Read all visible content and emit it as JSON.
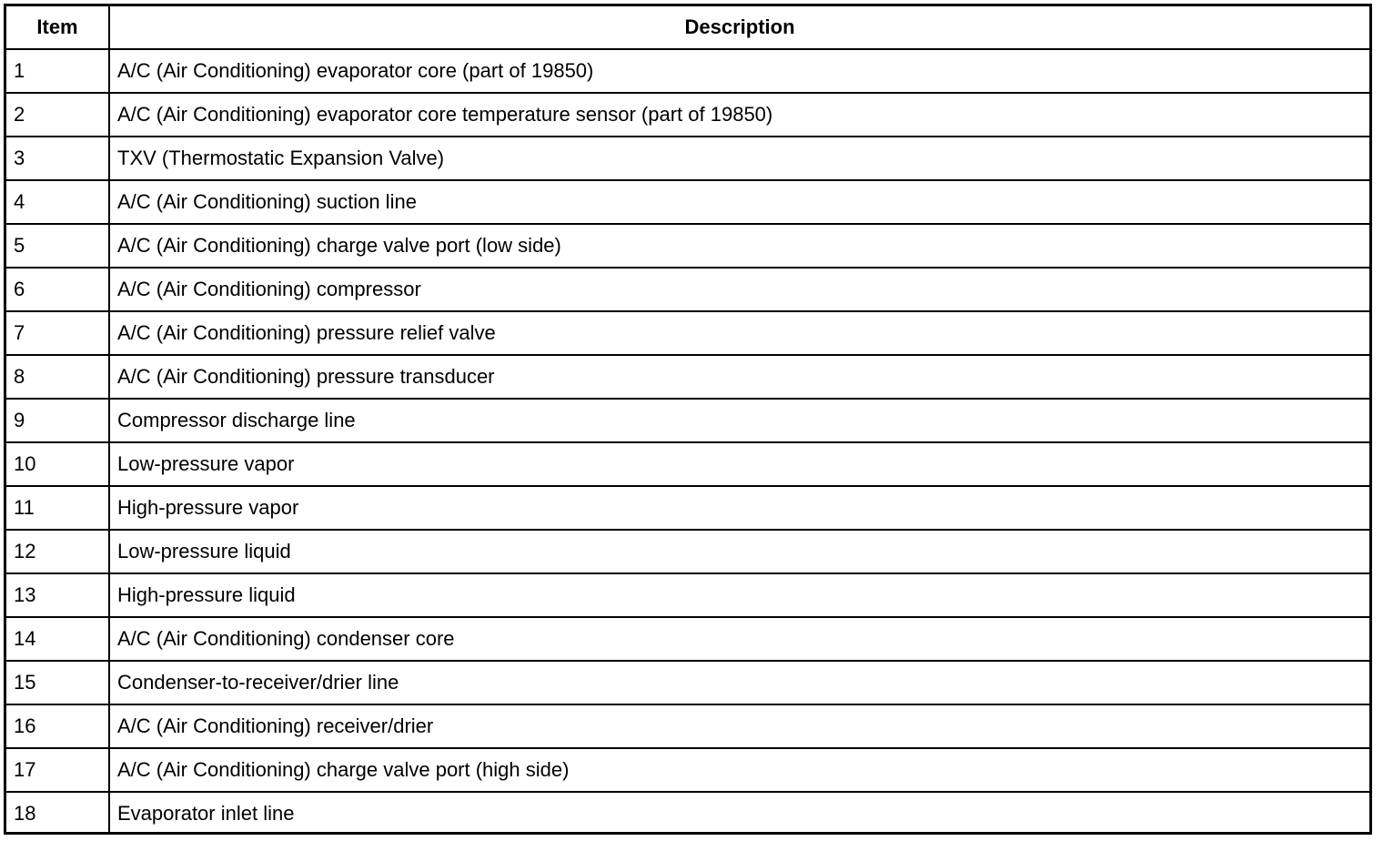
{
  "table": {
    "headers": [
      "Item",
      "Description"
    ],
    "rows": [
      [
        "1",
        "A/C (Air Conditioning) evaporator core (part of 19850)"
      ],
      [
        "2",
        "A/C (Air Conditioning) evaporator core temperature sensor (part of 19850)"
      ],
      [
        "3",
        "TXV (Thermostatic Expansion Valve)"
      ],
      [
        "4",
        "A/C (Air Conditioning) suction line"
      ],
      [
        "5",
        "A/C (Air Conditioning) charge valve port (low side)"
      ],
      [
        "6",
        "A/C (Air Conditioning) compressor"
      ],
      [
        "7",
        "A/C (Air Conditioning) pressure relief valve"
      ],
      [
        "8",
        "A/C (Air Conditioning) pressure transducer"
      ],
      [
        "9",
        "Compressor discharge line"
      ],
      [
        "10",
        "Low-pressure vapor"
      ],
      [
        "11",
        "High-pressure vapor"
      ],
      [
        "12",
        "Low-pressure liquid"
      ],
      [
        "13",
        "High-pressure liquid"
      ],
      [
        "14",
        "A/C (Air Conditioning) condenser core"
      ],
      [
        "15",
        "Condenser-to-receiver/drier line"
      ],
      [
        "16",
        "A/C (Air Conditioning) receiver/drier"
      ],
      [
        "17",
        "A/C (Air Conditioning) charge valve port (high side)"
      ],
      [
        "18",
        "Evaporator inlet line"
      ]
    ]
  }
}
